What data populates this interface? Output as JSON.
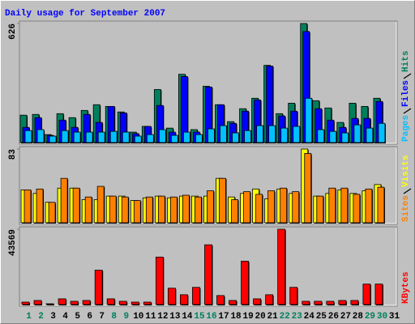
{
  "chart_data": [
    {
      "type": "bar",
      "title": "Daily usage for September 2007",
      "ylim": [
        0,
        626
      ],
      "yticks": [
        626
      ],
      "series": [
        {
          "name": "Hits",
          "color": "#00805c",
          "values": [
            144,
            148,
            42,
            152,
            131,
            169,
            199,
            190,
            161,
            55,
            85,
            279,
            76,
            359,
            68,
            296,
            199,
            110,
            178,
            233,
            406,
            152,
            207,
            626,
            220,
            182,
            106,
            207,
            190,
            233,
            0
          ]
        },
        {
          "name": "Files",
          "color": "#0000ff",
          "values": [
            80,
            131,
            38,
            118,
            80,
            148,
            106,
            190,
            156,
            47,
            85,
            195,
            55,
            347,
            55,
            292,
            199,
            101,
            165,
            224,
            402,
            140,
            165,
            584,
            178,
            118,
            80,
            127,
            127,
            216,
            0
          ]
        },
        {
          "name": "Pages",
          "color": "#00c0ff",
          "values": [
            63,
            68,
            34,
            63,
            55,
            55,
            55,
            59,
            55,
            34,
            42,
            68,
            38,
            55,
            42,
            72,
            89,
            51,
            63,
            89,
            89,
            76,
            85,
            233,
            68,
            59,
            51,
            93,
            76,
            101,
            0
          ]
        }
      ]
    },
    {
      "type": "bar",
      "ylim": [
        0,
        83
      ],
      "yticks": [
        83
      ],
      "series": [
        {
          "name": "Visits",
          "color": "#ffff00",
          "values": [
            37,
            33,
            23,
            39,
            39,
            26,
            26,
            30,
            30,
            25,
            28,
            30,
            28,
            30,
            30,
            30,
            50,
            29,
            33,
            38,
            27,
            38,
            33,
            83,
            30,
            33,
            37,
            33,
            36,
            43,
            0
          ]
        },
        {
          "name": "Sites",
          "color": "#ff8000",
          "values": [
            37,
            38,
            23,
            50,
            39,
            29,
            41,
            30,
            29,
            25,
            29,
            30,
            29,
            31,
            29,
            36,
            50,
            26,
            35,
            32,
            36,
            39,
            35,
            78,
            30,
            39,
            39,
            32,
            38,
            40,
            0
          ]
        }
      ]
    },
    {
      "type": "bar",
      "ylim": [
        0,
        43569
      ],
      "yticks": [
        43569
      ],
      "categories": [
        "1",
        "2",
        "3",
        "4",
        "5",
        "6",
        "7",
        "8",
        "9",
        "10",
        "11",
        "12",
        "13",
        "14",
        "15",
        "16",
        "17",
        "18",
        "19",
        "20",
        "21",
        "22",
        "23",
        "24",
        "25",
        "26",
        "27",
        "28",
        "29",
        "30",
        "31"
      ],
      "category_colors": [
        "#00805c",
        "#00805c",
        "#000000",
        "#000000",
        "#000000",
        "#000000",
        "#000000",
        "#00805c",
        "#00805c",
        "#000000",
        "#000000",
        "#000000",
        "#000000",
        "#000000",
        "#00805c",
        "#00805c",
        "#000000",
        "#000000",
        "#000000",
        "#000000",
        "#000000",
        "#00805c",
        "#00805c",
        "#000000",
        "#000000",
        "#000000",
        "#000000",
        "#000000",
        "#00805c",
        "#00805c",
        "#000000"
      ],
      "series": [
        {
          "name": "KBytes",
          "color": "#ff0000",
          "values": [
            1421,
            2368,
            474,
            3315,
            1894,
            2368,
            19891,
            3315,
            1894,
            1421,
            1421,
            27469,
            9472,
            5683,
            9946,
            34570,
            5210,
            2368,
            25101,
            3315,
            5683,
            43569,
            9946,
            1894,
            1894,
            1894,
            2368,
            2368,
            11840,
            11840,
            0
          ]
        }
      ]
    }
  ]
}
